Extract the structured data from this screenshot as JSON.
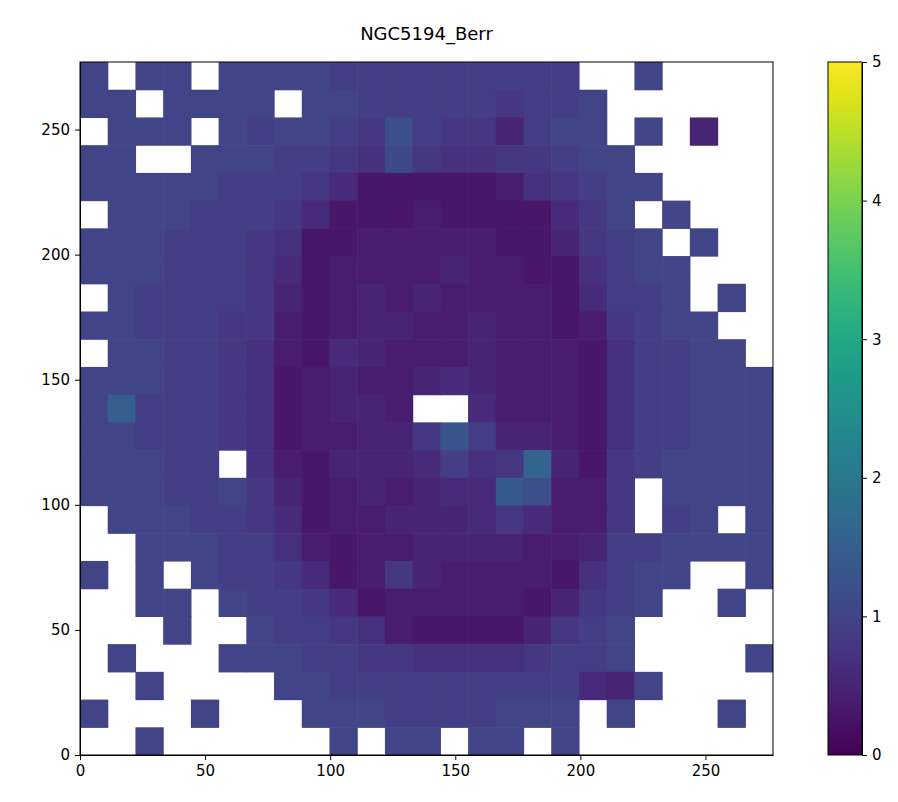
{
  "chart_data": {
    "type": "heatmap",
    "title": "NGC5194_Berr",
    "color": "viridis",
    "xlim": [
      0,
      277
    ],
    "ylim": [
      0,
      277
    ],
    "xticks": [
      0,
      50,
      100,
      150,
      200,
      250
    ],
    "yticks": [
      0,
      50,
      100,
      150,
      200,
      250
    ],
    "cells": [
      [
        1.0,
        null,
        1.0,
        1.0,
        null,
        1.0,
        1.0,
        1.0,
        1.0,
        0.9,
        0.9,
        0.9,
        0.9,
        0.9,
        0.9,
        0.9,
        0.9,
        0.9,
        null,
        null,
        1.0,
        null,
        null,
        null,
        null
      ],
      [
        1.0,
        1.0,
        null,
        1.0,
        1.0,
        1.0,
        1.0,
        null,
        1.0,
        1.0,
        0.9,
        0.9,
        0.9,
        0.9,
        0.9,
        0.8,
        0.9,
        0.9,
        1.0,
        null,
        null,
        null,
        null,
        null,
        null
      ],
      [
        null,
        1.0,
        1.0,
        1.0,
        null,
        1.0,
        0.9,
        1.0,
        1.0,
        0.9,
        0.8,
        1.2,
        0.9,
        0.8,
        0.8,
        0.5,
        0.9,
        1.0,
        1.0,
        null,
        1.0,
        null,
        0.5,
        null,
        null
      ],
      [
        1.0,
        1.0,
        null,
        null,
        1.0,
        1.0,
        1.0,
        0.9,
        0.9,
        0.8,
        0.7,
        1.1,
        0.8,
        0.7,
        0.7,
        0.8,
        0.8,
        0.9,
        1.0,
        1.0,
        null,
        null,
        null,
        null,
        null
      ],
      [
        1.0,
        1.0,
        1.0,
        1.0,
        1.0,
        0.9,
        0.9,
        0.9,
        0.8,
        0.6,
        0.3,
        0.3,
        0.3,
        0.3,
        0.3,
        0.4,
        0.7,
        0.8,
        0.9,
        1.0,
        1.0,
        null,
        null,
        null,
        null
      ],
      [
        null,
        1.0,
        1.0,
        1.0,
        0.9,
        0.9,
        0.9,
        0.8,
        0.6,
        0.3,
        0.3,
        0.3,
        0.4,
        0.3,
        0.3,
        0.3,
        0.3,
        0.6,
        0.8,
        1.0,
        null,
        1.0,
        null,
        null,
        null
      ],
      [
        1.0,
        1.0,
        1.0,
        0.9,
        0.9,
        0.9,
        0.8,
        0.7,
        0.3,
        0.3,
        0.4,
        0.4,
        0.4,
        0.4,
        0.4,
        0.3,
        0.3,
        0.5,
        0.8,
        0.9,
        1.0,
        null,
        1.0,
        null,
        null
      ],
      [
        1.0,
        1.0,
        1.0,
        0.9,
        0.9,
        0.9,
        0.8,
        0.6,
        0.3,
        0.4,
        0.4,
        0.4,
        0.4,
        0.5,
        0.4,
        0.4,
        0.3,
        0.3,
        0.7,
        0.9,
        1.0,
        1.0,
        null,
        null,
        null
      ],
      [
        null,
        1.0,
        0.9,
        0.9,
        0.9,
        0.9,
        0.8,
        0.5,
        0.3,
        0.4,
        0.5,
        0.4,
        0.5,
        0.4,
        0.4,
        0.4,
        0.4,
        0.3,
        0.6,
        0.9,
        0.9,
        1.0,
        null,
        1.0,
        null
      ],
      [
        1.0,
        1.0,
        0.9,
        0.9,
        0.9,
        0.8,
        0.8,
        0.4,
        0.3,
        0.4,
        0.5,
        0.5,
        0.4,
        0.4,
        0.5,
        0.4,
        0.4,
        0.3,
        0.4,
        0.8,
        0.9,
        1.0,
        1.0,
        null,
        null
      ],
      [
        null,
        1.0,
        1.0,
        0.9,
        0.9,
        0.8,
        0.7,
        0.4,
        0.3,
        0.6,
        0.5,
        0.4,
        0.4,
        0.4,
        0.5,
        0.4,
        0.4,
        0.4,
        0.3,
        0.7,
        0.9,
        0.9,
        1.0,
        1.0,
        null
      ],
      [
        1.0,
        1.0,
        1.0,
        0.9,
        0.9,
        0.8,
        0.7,
        0.3,
        0.4,
        0.5,
        0.4,
        0.4,
        0.5,
        0.6,
        0.5,
        0.4,
        0.4,
        0.4,
        0.3,
        0.7,
        0.9,
        0.9,
        1.0,
        1.0,
        1.0
      ],
      [
        1.0,
        1.5,
        0.9,
        0.9,
        0.9,
        0.8,
        0.7,
        0.3,
        0.4,
        0.5,
        0.5,
        0.4,
        null,
        null,
        0.6,
        0.4,
        0.4,
        0.4,
        0.3,
        0.7,
        0.9,
        0.9,
        1.0,
        1.0,
        1.0
      ],
      [
        1.0,
        1.0,
        0.9,
        0.9,
        0.9,
        0.8,
        0.7,
        0.3,
        0.4,
        0.4,
        0.5,
        0.5,
        0.8,
        1.3,
        0.9,
        0.5,
        0.5,
        0.4,
        0.3,
        0.7,
        0.9,
        0.9,
        1.0,
        1.0,
        1.0
      ],
      [
        1.0,
        1.0,
        1.0,
        0.9,
        0.9,
        null,
        0.7,
        0.4,
        0.3,
        0.5,
        0.5,
        0.5,
        0.6,
        0.9,
        0.7,
        0.8,
        1.6,
        0.5,
        0.3,
        0.8,
        0.9,
        1.0,
        1.0,
        1.0,
        1.0
      ],
      [
        1.0,
        1.0,
        1.0,
        0.9,
        0.9,
        1.0,
        0.8,
        0.5,
        0.3,
        0.4,
        0.5,
        0.4,
        0.5,
        0.6,
        0.6,
        1.4,
        1.2,
        0.4,
        0.4,
        0.8,
        null,
        1.0,
        1.0,
        1.0,
        1.0
      ],
      [
        null,
        1.0,
        1.0,
        1.0,
        0.9,
        0.9,
        0.8,
        0.6,
        0.3,
        0.4,
        0.4,
        0.5,
        0.5,
        0.5,
        0.6,
        0.8,
        0.6,
        0.4,
        0.4,
        0.8,
        null,
        0.9,
        1.0,
        null,
        1.0
      ],
      [
        null,
        null,
        1.0,
        1.0,
        1.0,
        0.9,
        0.9,
        0.7,
        0.4,
        0.3,
        0.4,
        0.4,
        0.5,
        0.5,
        0.5,
        0.5,
        0.4,
        0.4,
        0.5,
        0.9,
        0.9,
        1.0,
        1.0,
        1.0,
        1.0
      ],
      [
        1.0,
        null,
        1.0,
        null,
        1.0,
        0.9,
        0.9,
        0.8,
        0.6,
        0.3,
        0.4,
        0.8,
        0.5,
        0.4,
        0.4,
        0.4,
        0.4,
        0.3,
        0.7,
        0.9,
        1.0,
        1.0,
        null,
        null,
        1.0
      ],
      [
        null,
        null,
        1.0,
        1.0,
        null,
        1.0,
        0.9,
        0.9,
        0.8,
        0.6,
        0.3,
        0.4,
        0.4,
        0.4,
        0.4,
        0.4,
        0.3,
        0.5,
        0.8,
        0.9,
        1.0,
        null,
        null,
        1.0,
        null
      ],
      [
        null,
        null,
        null,
        1.0,
        null,
        null,
        1.0,
        0.9,
        0.9,
        0.8,
        0.7,
        0.4,
        0.3,
        0.3,
        0.3,
        0.3,
        0.5,
        0.8,
        0.9,
        1.0,
        null,
        null,
        null,
        null,
        null
      ],
      [
        null,
        1.0,
        null,
        null,
        null,
        1.0,
        1.0,
        1.0,
        0.9,
        0.9,
        0.8,
        0.8,
        0.7,
        0.7,
        0.7,
        0.7,
        0.8,
        0.9,
        0.9,
        1.0,
        null,
        null,
        null,
        null,
        1.0
      ],
      [
        null,
        null,
        1.0,
        null,
        null,
        null,
        null,
        1.0,
        1.0,
        0.9,
        0.9,
        0.9,
        0.9,
        0.9,
        0.9,
        0.9,
        0.9,
        0.9,
        0.6,
        0.5,
        1.0,
        null,
        null,
        null,
        null
      ],
      [
        1.0,
        null,
        null,
        null,
        1.0,
        null,
        null,
        null,
        1.0,
        1.0,
        1.0,
        0.9,
        0.9,
        0.9,
        0.9,
        1.0,
        1.0,
        1.0,
        null,
        1.0,
        null,
        null,
        null,
        1.0,
        null
      ],
      [
        null,
        null,
        1.0,
        null,
        null,
        null,
        null,
        null,
        null,
        1.0,
        null,
        1.0,
        1.0,
        null,
        1.0,
        1.0,
        null,
        1.0,
        null,
        null,
        null,
        null,
        null,
        null,
        null
      ]
    ],
    "colorbar": {
      "lim": [
        0,
        5
      ],
      "ticks": [
        0,
        1,
        2,
        3,
        4,
        5
      ]
    }
  }
}
